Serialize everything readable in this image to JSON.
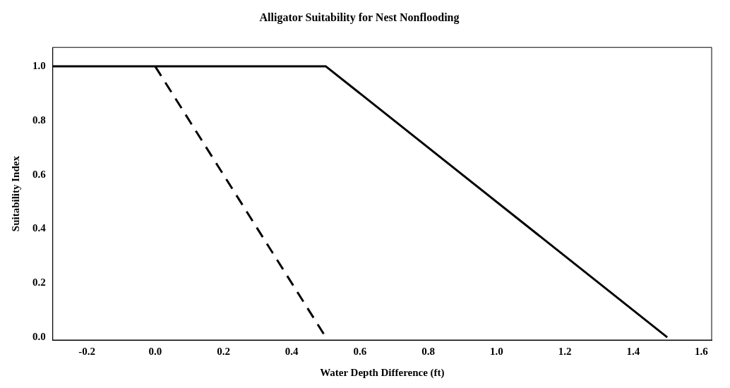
{
  "chart_data": {
    "type": "line",
    "title": "Alligator Suitability for Nest Nonflooding",
    "xlabel": "Water Depth Difference (ft)",
    "ylabel": "Suitability Index",
    "series": [
      {
        "color": "#000000",
        "x": [
          -0.3,
          0.5,
          1.5
        ],
        "values": [
          1.0,
          1.0,
          0.0
        ],
        "line_style": "solid"
      },
      {
        "color": "#000000",
        "x": [
          0.0,
          0.5
        ],
        "values": [
          1.0,
          0.0
        ],
        "line_style": "dashed"
      }
    ],
    "xlim": [
      -0.3,
      1.63
    ],
    "xticks": [
      {
        "value": -0.2,
        "label": "-0.2"
      },
      {
        "value": 0,
        "label": "0.0"
      },
      {
        "value": 0.2,
        "label": "0.2"
      },
      {
        "value": 0.4,
        "label": "0.4"
      },
      {
        "value": 0.6,
        "label": "0.6"
      },
      {
        "value": 0.8,
        "label": "0.8"
      },
      {
        "value": 1,
        "label": "1.0"
      },
      {
        "value": 1.2,
        "label": "1.2"
      },
      {
        "value": 1.4,
        "label": "1.4"
      },
      {
        "value": 1.6,
        "label": "1.6"
      }
    ],
    "ylim": [
      -0.01,
      1.07
    ],
    "yticks": [
      {
        "value": 0,
        "label": "0.0"
      },
      {
        "value": 0.2,
        "label": "0.2"
      },
      {
        "value": 0.4,
        "label": "0.4"
      },
      {
        "value": 0.6,
        "label": "0.6"
      },
      {
        "value": 0.8,
        "label": "0.8"
      },
      {
        "value": 1,
        "label": "1.0"
      }
    ],
    "grid": false,
    "legend": false,
    "marker": "none"
  }
}
